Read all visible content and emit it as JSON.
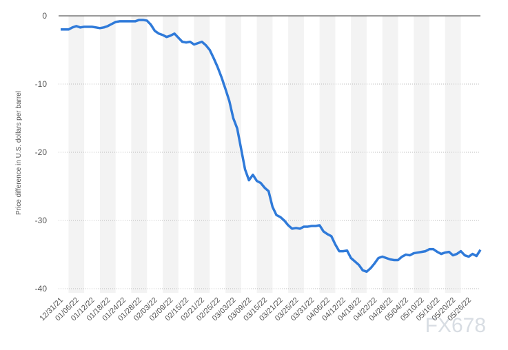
{
  "chart_data": {
    "type": "line",
    "y_label": "Price difference in U.S. dollars per barrel",
    "watermark": "FX678",
    "categories": [
      "12/31/21",
      null,
      null,
      null,
      "01/06/22",
      null,
      null,
      null,
      "01/12/22",
      null,
      null,
      null,
      "01/18/22",
      null,
      null,
      null,
      "01/24/22",
      null,
      null,
      null,
      "01/28/22",
      null,
      null,
      null,
      "02/03/22",
      null,
      null,
      null,
      "02/09/22",
      null,
      null,
      null,
      "02/15/22",
      null,
      null,
      null,
      "02/21/22",
      null,
      null,
      null,
      "02/25/22",
      null,
      null,
      null,
      "03/03/22",
      null,
      null,
      null,
      "03/09/22",
      null,
      null,
      null,
      "03/15/22",
      null,
      null,
      null,
      "03/21/22",
      null,
      null,
      null,
      "03/25/22",
      null,
      null,
      null,
      "03/31/22",
      null,
      null,
      null,
      "04/06/22",
      null,
      null,
      null,
      "04/12/22",
      null,
      null,
      null,
      "04/18/22",
      null,
      null,
      null,
      "04/22/22",
      null,
      null,
      null,
      "04/28/22",
      null,
      null,
      null,
      "05/04/22",
      null,
      null,
      null,
      "05/10/22",
      null,
      null,
      null,
      "05/16/22",
      null,
      null,
      null,
      "05/20/22",
      null,
      null,
      null,
      "05/26/22",
      null,
      null,
      null
    ],
    "series": [
      {
        "color": "#2f7ad9",
        "values": [
          -2.0,
          -2.0,
          -2.0,
          -1.7,
          -1.5,
          -1.7,
          -1.6,
          -1.6,
          -1.6,
          -1.7,
          -1.8,
          -1.7,
          -1.5,
          -1.2,
          -0.9,
          -0.8,
          -0.8,
          -0.8,
          -0.8,
          -0.8,
          -0.6,
          -0.6,
          -0.7,
          -1.3,
          -2.2,
          -2.6,
          -2.8,
          -3.1,
          -2.9,
          -2.6,
          -3.2,
          -3.8,
          -3.9,
          -3.8,
          -4.2,
          -4.0,
          -3.8,
          -4.3,
          -5.0,
          -6.2,
          -7.5,
          -9.0,
          -10.7,
          -12.5,
          -15.0,
          -16.5,
          -19.5,
          -22.5,
          -24.1,
          -23.3,
          -24.2,
          -24.5,
          -25.2,
          -25.7,
          -28.0,
          -29.2,
          -29.5,
          -30.0,
          -30.7,
          -31.2,
          -31.1,
          -31.2,
          -30.9,
          -30.9,
          -30.8,
          -30.8,
          -30.7,
          -31.6,
          -32.0,
          -32.3,
          -33.5,
          -34.5,
          -34.5,
          -34.4,
          -35.5,
          -36.0,
          -36.5,
          -37.3,
          -37.5,
          -37.0,
          -36.3,
          -35.5,
          -35.3,
          -35.5,
          -35.7,
          -35.8,
          -35.8,
          -35.3,
          -35.0,
          -35.1,
          -34.8,
          -34.7,
          -34.6,
          -34.5,
          -34.2,
          -34.2,
          -34.6,
          -34.9,
          -34.7,
          -34.6,
          -35.1,
          -34.9,
          -34.5,
          -35.1,
          -35.3,
          -34.9,
          -35.2,
          -34.3
        ]
      }
    ],
    "ylim": [
      -40.6,
      0
    ],
    "yticks": [
      0,
      -10,
      -20,
      -30,
      -40
    ],
    "grid": true
  }
}
